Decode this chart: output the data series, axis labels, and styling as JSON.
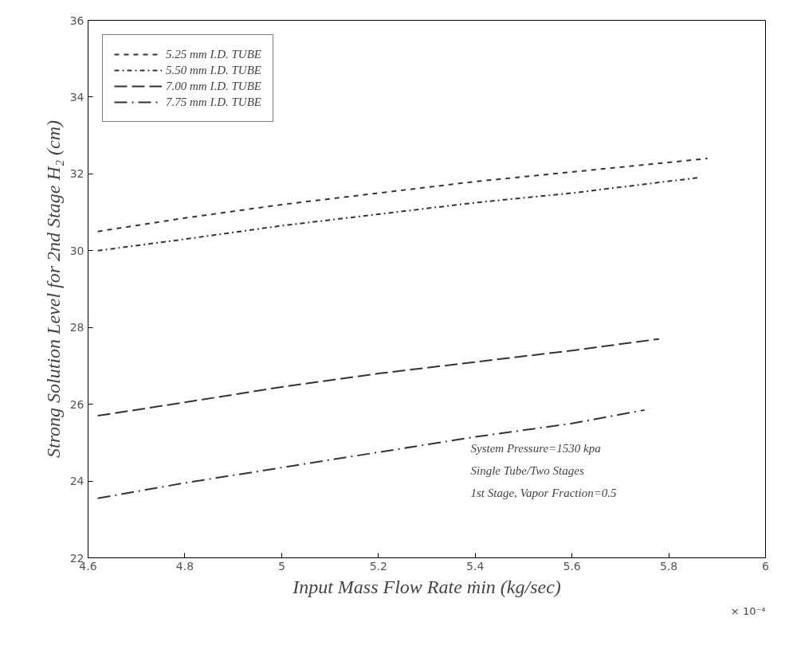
{
  "chart_data": {
    "type": "line",
    "xlabel": "Input Mass Flow Rate ṁin (kg/sec)",
    "ylabel": "Strong Solution Level for 2nd Stage H₂ (cm)",
    "xlim": [
      4.6,
      6
    ],
    "xticks": [
      4.6,
      4.8,
      5,
      5.2,
      5.4,
      5.6,
      5.8,
      6
    ],
    "ylim": [
      22,
      36
    ],
    "yticks": [
      22,
      24,
      26,
      28,
      30,
      32,
      34,
      36
    ],
    "grid": false,
    "legend": "top left",
    "marker": "none",
    "series": [
      {
        "name": "5.25 mm I.D. TUBE",
        "color": "#333333",
        "line_style": "dashed",
        "x": [
          4.62,
          4.8,
          5.0,
          5.2,
          5.4,
          5.6,
          5.88
        ],
        "values": [
          30.5,
          30.85,
          31.2,
          31.5,
          31.8,
          32.05,
          32.4
        ]
      },
      {
        "name": "5.50 mm I.D. TUBE",
        "color": "#333333",
        "line_style": "dashdot",
        "x": [
          4.62,
          4.8,
          5.0,
          5.2,
          5.4,
          5.6,
          5.86
        ],
        "values": [
          30.0,
          30.3,
          30.65,
          30.95,
          31.25,
          31.5,
          31.9
        ]
      },
      {
        "name": "7.00 mm I.D. TUBE",
        "color": "#333333",
        "line_style": "longdash",
        "x": [
          4.62,
          4.8,
          5.0,
          5.2,
          5.4,
          5.6,
          5.78
        ],
        "values": [
          25.7,
          26.05,
          26.45,
          26.8,
          27.1,
          27.4,
          27.7
        ]
      },
      {
        "name": "7.75 mm I.D. TUBE",
        "color": "#333333",
        "line_style": "longdashdot",
        "x": [
          4.62,
          4.8,
          5.0,
          5.2,
          5.4,
          5.6,
          5.75
        ],
        "values": [
          23.55,
          23.95,
          24.35,
          24.75,
          25.15,
          25.5,
          25.85
        ]
      }
    ],
    "annotations": [
      "System Pressure=1530 kpa",
      "Single Tube/Two Stages",
      "1st Stage, Vapor Fraction=0.5",
      "× 10⁻⁴"
    ]
  }
}
